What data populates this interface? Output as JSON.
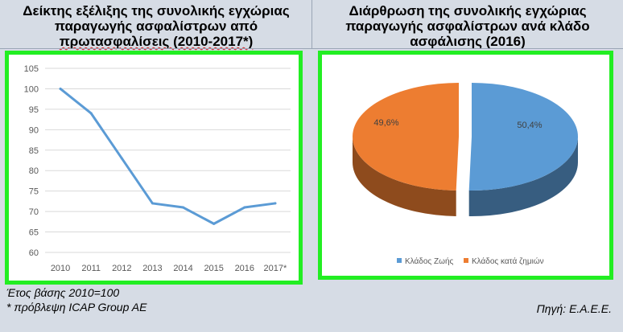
{
  "panel_left": {
    "title_lines": [
      "Δείκτης εξέλιξης της συνολικής εγχώριας",
      "παραγωγής ασφαλίστρων από",
      "πρωτασφαλίσεις (2010-2017*)"
    ]
  },
  "panel_right": {
    "title_lines": [
      "Διάρθρωση της συνολικής εγχώριας",
      "παραγωγής ασφαλίστρων ανά κλάδο",
      "ασφάλισης (2016)"
    ]
  },
  "footer": {
    "base_year_note": "Έτος βάσης 2010=100",
    "forecast_note": "* πρόβλεψη ICAP Group AE",
    "source": "Πηγή: Ε.Α.Ε.Ε."
  },
  "chart_data": [
    {
      "type": "line",
      "categories": [
        "2010",
        "2011",
        "2012",
        "2013",
        "2014",
        "2015",
        "2016",
        "2017*"
      ],
      "series": [
        {
          "values": [
            100,
            94,
            83,
            72,
            71,
            67,
            71,
            72
          ],
          "color": "#5b9bd5"
        }
      ],
      "yticks": [
        60,
        65,
        70,
        75,
        80,
        85,
        90,
        95,
        100,
        105
      ],
      "ylim": [
        60,
        105
      ],
      "grid": true
    },
    {
      "type": "pie",
      "labels": [
        "Κλάδος Ζωής",
        "Κλάδος κατά ζημιών"
      ],
      "values": [
        50.4,
        49.6
      ],
      "value_labels": [
        "50,4%",
        "49,6%"
      ],
      "colors": [
        "#5b9bd5",
        "#ed7d31"
      ],
      "legend": "bottom"
    }
  ]
}
